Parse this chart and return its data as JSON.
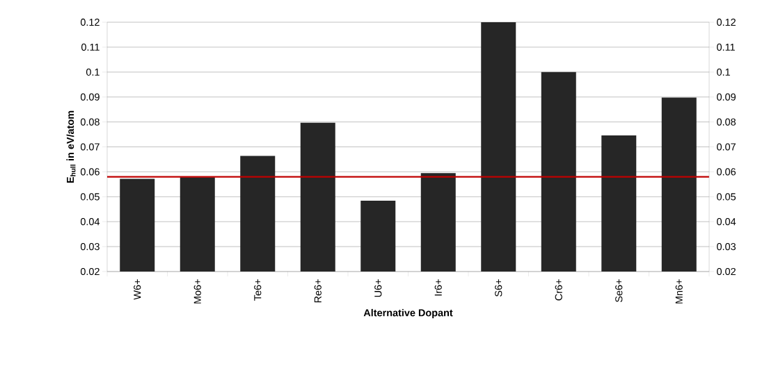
{
  "chart_data": {
    "type": "bar",
    "xlabel": "Alternative Dopant",
    "ylabel": "E$_{hull}$ in eV/atom",
    "categories": [
      "W6+",
      "Mo6+",
      "Te6+",
      "Re6+",
      "U6+",
      "Ir6+",
      "S6+",
      "Cr6+",
      "Se6+",
      "Mn6+"
    ],
    "values": [
      0.0572,
      0.0578,
      0.0664,
      0.0797,
      0.0484,
      0.0595,
      0.12,
      0.1,
      0.0746,
      0.0898
    ],
    "color": "#262626",
    "ylim": [
      0.02,
      0.12
    ],
    "yticks": [
      0.02,
      0.03,
      0.04,
      0.05,
      0.06,
      0.07,
      0.08,
      0.09,
      0.1,
      0.11,
      0.12
    ],
    "y2lim": [
      0.02,
      0.12
    ],
    "y2ticks": [
      0.02,
      0.03,
      0.04,
      0.05,
      0.06,
      0.07,
      0.08,
      0.09,
      0.1,
      0.11,
      0.12
    ],
    "ref_lines": [
      {
        "axis": "y",
        "value": 0.058,
        "color": "#c00000"
      }
    ],
    "grid": "y"
  }
}
